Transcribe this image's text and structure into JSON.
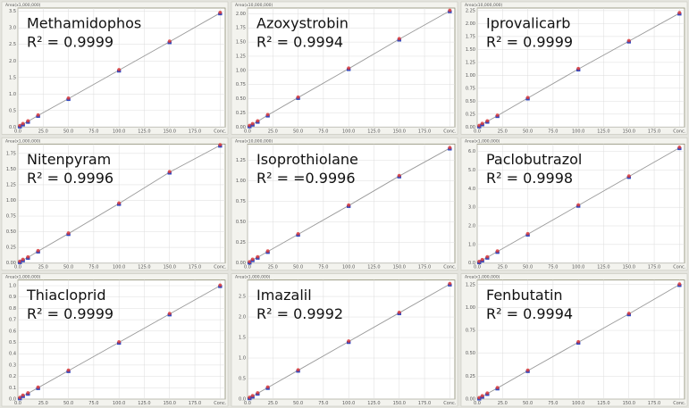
{
  "chart_data": [
    {
      "type": "scatter",
      "title": "Methamidophos",
      "annotation": "R² = 0.9999",
      "ylabel": "Area(x1,000,000)",
      "x": [
        2,
        5,
        10,
        20,
        50,
        100,
        150,
        200
      ],
      "values": [
        0.03,
        0.09,
        0.17,
        0.35,
        0.86,
        1.72,
        2.58,
        3.45
      ],
      "xlim": [
        0,
        205
      ],
      "xticks": [
        {
          "value": 0,
          "label": "0.0"
        },
        {
          "value": 25,
          "label": "25.0"
        },
        {
          "value": 50,
          "label": "50.0"
        },
        {
          "value": 75,
          "label": "75.0"
        },
        {
          "value": 100,
          "label": "100.0"
        },
        {
          "value": 125,
          "label": "125.0"
        },
        {
          "value": 150,
          "label": "150.0"
        },
        {
          "value": 175,
          "label": "175.0"
        },
        {
          "value": 200,
          "label": "Conc."
        }
      ],
      "ylim": [
        0,
        3.6
      ],
      "yticks": [
        {
          "value": 0,
          "label": "0.0"
        },
        {
          "value": 0.5,
          "label": "0.5"
        },
        {
          "value": 1,
          "label": "1.0"
        },
        {
          "value": 1.5,
          "label": "1.5"
        },
        {
          "value": 2,
          "label": "2.0"
        },
        {
          "value": 2.5,
          "label": "2.5"
        },
        {
          "value": 3,
          "label": "3.0"
        },
        {
          "value": 3.5,
          "label": "3.5"
        }
      ],
      "grid": true,
      "marker_colors": [
        "#d83838",
        "#3048c0"
      ],
      "line_color": "#9a9a9a"
    },
    {
      "type": "scatter",
      "title": "Azoxystrobin",
      "annotation": "R² = 0.9994",
      "ylabel": "Area(x10,000,000)",
      "x": [
        2,
        5,
        10,
        20,
        50,
        100,
        150,
        200
      ],
      "values": [
        0.02,
        0.05,
        0.1,
        0.21,
        0.52,
        1.03,
        1.55,
        2.05
      ],
      "xlim": [
        0,
        205
      ],
      "xticks": [
        {
          "value": 0,
          "label": "0.0"
        },
        {
          "value": 25,
          "label": "25.0"
        },
        {
          "value": 50,
          "label": "50.0"
        },
        {
          "value": 75,
          "label": "75.0"
        },
        {
          "value": 100,
          "label": "100.0"
        },
        {
          "value": 125,
          "label": "125.0"
        },
        {
          "value": 150,
          "label": "150.0"
        },
        {
          "value": 175,
          "label": "175.0"
        },
        {
          "value": 200,
          "label": "Conc."
        }
      ],
      "ylim": [
        0,
        2.1
      ],
      "yticks": [
        {
          "value": 0,
          "label": "0.00"
        },
        {
          "value": 0.25,
          "label": "0.25"
        },
        {
          "value": 0.5,
          "label": "0.50"
        },
        {
          "value": 0.75,
          "label": "0.75"
        },
        {
          "value": 1,
          "label": "1.00"
        },
        {
          "value": 1.25,
          "label": "1.25"
        },
        {
          "value": 1.5,
          "label": "1.50"
        },
        {
          "value": 1.75,
          "label": "1.75"
        },
        {
          "value": 2,
          "label": "2.00"
        }
      ],
      "grid": true,
      "marker_colors": [
        "#d83838",
        "#3048c0"
      ],
      "line_color": "#9a9a9a"
    },
    {
      "type": "scatter",
      "title": "Iprovalicarb",
      "annotation": "R² = 0.9999",
      "ylabel": "Area(x10,000,000)",
      "x": [
        2,
        5,
        10,
        20,
        50,
        100,
        150,
        200
      ],
      "values": [
        0.02,
        0.06,
        0.11,
        0.22,
        0.56,
        1.12,
        1.66,
        2.2
      ],
      "xlim": [
        0,
        205
      ],
      "xticks": [
        {
          "value": 0,
          "label": "0.0"
        },
        {
          "value": 25,
          "label": "25.0"
        },
        {
          "value": 50,
          "label": "50.0"
        },
        {
          "value": 75,
          "label": "75.0"
        },
        {
          "value": 100,
          "label": "100.0"
        },
        {
          "value": 125,
          "label": "125.0"
        },
        {
          "value": 150,
          "label": "150.0"
        },
        {
          "value": 175,
          "label": "175.0"
        },
        {
          "value": 200,
          "label": "Conc."
        }
      ],
      "ylim": [
        0,
        2.3
      ],
      "yticks": [
        {
          "value": 0,
          "label": "0.00"
        },
        {
          "value": 0.25,
          "label": "0.25"
        },
        {
          "value": 0.5,
          "label": "0.50"
        },
        {
          "value": 0.75,
          "label": "0.75"
        },
        {
          "value": 1,
          "label": "1.00"
        },
        {
          "value": 1.25,
          "label": "1.25"
        },
        {
          "value": 1.5,
          "label": "1.50"
        },
        {
          "value": 1.75,
          "label": "1.75"
        },
        {
          "value": 2,
          "label": "2.00"
        },
        {
          "value": 2.25,
          "label": "2.25"
        }
      ],
      "grid": true,
      "marker_colors": [
        "#d83838",
        "#3048c0"
      ],
      "line_color": "#9a9a9a"
    },
    {
      "type": "scatter",
      "title": "Nitenpyram",
      "annotation": "R² = 0.9996",
      "ylabel": "Area(x1,000,000)",
      "x": [
        2,
        5,
        10,
        20,
        50,
        100,
        150,
        200
      ],
      "values": [
        0.02,
        0.05,
        0.09,
        0.19,
        0.47,
        0.95,
        1.45,
        1.88
      ],
      "xlim": [
        0,
        205
      ],
      "xticks": [
        {
          "value": 0,
          "label": "0.0"
        },
        {
          "value": 25,
          "label": "25.0"
        },
        {
          "value": 50,
          "label": "50.0"
        },
        {
          "value": 75,
          "label": "75.0"
        },
        {
          "value": 100,
          "label": "100.0"
        },
        {
          "value": 125,
          "label": "125.0"
        },
        {
          "value": 150,
          "label": "150.0"
        },
        {
          "value": 175,
          "label": "175.0"
        },
        {
          "value": 200,
          "label": "Conc."
        }
      ],
      "ylim": [
        0,
        1.9
      ],
      "yticks": [
        {
          "value": 0,
          "label": "0.00"
        },
        {
          "value": 0.25,
          "label": "0.25"
        },
        {
          "value": 0.5,
          "label": "0.50"
        },
        {
          "value": 0.75,
          "label": "0.75"
        },
        {
          "value": 1,
          "label": "1.00"
        },
        {
          "value": 1.25,
          "label": "1.25"
        },
        {
          "value": 1.5,
          "label": "1.50"
        },
        {
          "value": 1.75,
          "label": "1.75"
        }
      ],
      "grid": true,
      "marker_colors": [
        "#d83838",
        "#3048c0"
      ],
      "line_color": "#9a9a9a"
    },
    {
      "type": "scatter",
      "title": "Isoprothiolane",
      "annotation": "R² = =0.9996",
      "ylabel": "Area(x10,000,000)",
      "x": [
        2,
        5,
        10,
        20,
        50,
        100,
        150,
        200
      ],
      "values": [
        0.01,
        0.04,
        0.07,
        0.14,
        0.35,
        0.7,
        1.06,
        1.4
      ],
      "xlim": [
        0,
        205
      ],
      "xticks": [
        {
          "value": 0,
          "label": "0.0"
        },
        {
          "value": 25,
          "label": "25.0"
        },
        {
          "value": 50,
          "label": "50.0"
        },
        {
          "value": 75,
          "label": "75.0"
        },
        {
          "value": 100,
          "label": "100.0"
        },
        {
          "value": 125,
          "label": "125.0"
        },
        {
          "value": 150,
          "label": "150.0"
        },
        {
          "value": 175,
          "label": "175.0"
        },
        {
          "value": 200,
          "label": "Conc."
        }
      ],
      "ylim": [
        0,
        1.45
      ],
      "yticks": [
        {
          "value": 0,
          "label": "0.00"
        },
        {
          "value": 0.25,
          "label": "0.25"
        },
        {
          "value": 0.5,
          "label": "0.50"
        },
        {
          "value": 0.75,
          "label": "0.75"
        },
        {
          "value": 1,
          "label": "1.00"
        },
        {
          "value": 1.25,
          "label": "1.25"
        }
      ],
      "grid": true,
      "marker_colors": [
        "#d83838",
        "#3048c0"
      ],
      "line_color": "#9a9a9a"
    },
    {
      "type": "scatter",
      "title": "Paclobutrazol",
      "annotation": "R² = 0.9998",
      "ylabel": "Area(x1,000,000)",
      "x": [
        2,
        5,
        10,
        20,
        50,
        100,
        150,
        200
      ],
      "values": [
        0.06,
        0.16,
        0.31,
        0.62,
        1.55,
        3.1,
        4.65,
        6.2
      ],
      "xlim": [
        0,
        205
      ],
      "xticks": [
        {
          "value": 0,
          "label": "0.0"
        },
        {
          "value": 25,
          "label": "25.0"
        },
        {
          "value": 50,
          "label": "50.0"
        },
        {
          "value": 75,
          "label": "75.0"
        },
        {
          "value": 100,
          "label": "100.0"
        },
        {
          "value": 125,
          "label": "125.0"
        },
        {
          "value": 150,
          "label": "150.0"
        },
        {
          "value": 175,
          "label": "175.0"
        },
        {
          "value": 200,
          "label": "Conc."
        }
      ],
      "ylim": [
        0,
        6.4
      ],
      "yticks": [
        {
          "value": 0,
          "label": "0.0"
        },
        {
          "value": 1,
          "label": "1.0"
        },
        {
          "value": 2,
          "label": "2.0"
        },
        {
          "value": 3,
          "label": "3.0"
        },
        {
          "value": 4,
          "label": "4.0"
        },
        {
          "value": 5,
          "label": "5.0"
        },
        {
          "value": 6,
          "label": "6.0"
        }
      ],
      "grid": true,
      "marker_colors": [
        "#d83838",
        "#3048c0"
      ],
      "line_color": "#9a9a9a"
    },
    {
      "type": "scatter",
      "title": "Thiacloprid",
      "annotation": "R² = 0.9999",
      "ylabel": "Area(x1,000,000)",
      "x": [
        2,
        5,
        10,
        20,
        50,
        100,
        150,
        200
      ],
      "values": [
        0.01,
        0.03,
        0.05,
        0.1,
        0.25,
        0.5,
        0.75,
        1.0
      ],
      "xlim": [
        0,
        205
      ],
      "xticks": [
        {
          "value": 0,
          "label": "0.0"
        },
        {
          "value": 25,
          "label": "25.0"
        },
        {
          "value": 50,
          "label": "50.0"
        },
        {
          "value": 75,
          "label": "75.0"
        },
        {
          "value": 100,
          "label": "100.0"
        },
        {
          "value": 125,
          "label": "125.0"
        },
        {
          "value": 150,
          "label": "150.0"
        },
        {
          "value": 175,
          "label": "175.0"
        },
        {
          "value": 200,
          "label": "Conc."
        }
      ],
      "ylim": [
        0,
        1.05
      ],
      "yticks": [
        {
          "value": 0,
          "label": "0.0"
        },
        {
          "value": 0.1,
          "label": "0.1"
        },
        {
          "value": 0.2,
          "label": "0.2"
        },
        {
          "value": 0.3,
          "label": "0.3"
        },
        {
          "value": 0.4,
          "label": "0.4"
        },
        {
          "value": 0.5,
          "label": "0.5"
        },
        {
          "value": 0.6,
          "label": "0.6"
        },
        {
          "value": 0.7,
          "label": "0.7"
        },
        {
          "value": 0.8,
          "label": "0.8"
        },
        {
          "value": 0.9,
          "label": "0.9"
        },
        {
          "value": 1,
          "label": "1.0"
        }
      ],
      "grid": true,
      "marker_colors": [
        "#d83838",
        "#3048c0"
      ],
      "line_color": "#9a9a9a"
    },
    {
      "type": "scatter",
      "title": "Imazalil",
      "annotation": "R² = 0.9992",
      "ylabel": "Area(x1,000,000)",
      "x": [
        2,
        5,
        10,
        20,
        50,
        100,
        150,
        200
      ],
      "values": [
        0.03,
        0.07,
        0.14,
        0.28,
        0.7,
        1.4,
        2.1,
        2.8
      ],
      "xlim": [
        0,
        205
      ],
      "xticks": [
        {
          "value": 0,
          "label": "0.0"
        },
        {
          "value": 25,
          "label": "25.0"
        },
        {
          "value": 50,
          "label": "50.0"
        },
        {
          "value": 75,
          "label": "75.0"
        },
        {
          "value": 100,
          "label": "100.0"
        },
        {
          "value": 125,
          "label": "125.0"
        },
        {
          "value": 150,
          "label": "150.0"
        },
        {
          "value": 175,
          "label": "175.0"
        },
        {
          "value": 200,
          "label": "Conc."
        }
      ],
      "ylim": [
        0,
        2.9
      ],
      "yticks": [
        {
          "value": 0,
          "label": "0.0"
        },
        {
          "value": 0.5,
          "label": "0.5"
        },
        {
          "value": 1,
          "label": "1.0"
        },
        {
          "value": 1.5,
          "label": "1.5"
        },
        {
          "value": 2,
          "label": "2.0"
        },
        {
          "value": 2.5,
          "label": "2.5"
        }
      ],
      "grid": true,
      "marker_colors": [
        "#d83838",
        "#3048c0"
      ],
      "line_color": "#9a9a9a"
    },
    {
      "type": "scatter",
      "title": "Fenbutatin",
      "annotation": "R² = 0.9994",
      "ylabel": "Area(x1,000,000)",
      "x": [
        2,
        5,
        10,
        20,
        50,
        100,
        150,
        200
      ],
      "values": [
        0.01,
        0.03,
        0.06,
        0.12,
        0.31,
        0.62,
        0.93,
        1.25
      ],
      "xlim": [
        0,
        205
      ],
      "xticks": [
        {
          "value": 0,
          "label": "0.0"
        },
        {
          "value": 25,
          "label": "25.0"
        },
        {
          "value": 50,
          "label": "50.0"
        },
        {
          "value": 75,
          "label": "75.0"
        },
        {
          "value": 100,
          "label": "100.0"
        },
        {
          "value": 125,
          "label": "125.0"
        },
        {
          "value": 150,
          "label": "150.0"
        },
        {
          "value": 175,
          "label": "175.0"
        },
        {
          "value": 200,
          "label": "Conc."
        }
      ],
      "ylim": [
        0,
        1.3
      ],
      "yticks": [
        {
          "value": 0,
          "label": "0.00"
        },
        {
          "value": 0.25,
          "label": "0.25"
        },
        {
          "value": 0.5,
          "label": "0.50"
        },
        {
          "value": 0.75,
          "label": "0.75"
        },
        {
          "value": 1,
          "label": "1.00"
        },
        {
          "value": 1.25,
          "label": "1.25"
        }
      ],
      "grid": true,
      "marker_colors": [
        "#d83838",
        "#3048c0"
      ],
      "line_color": "#9a9a9a"
    }
  ]
}
